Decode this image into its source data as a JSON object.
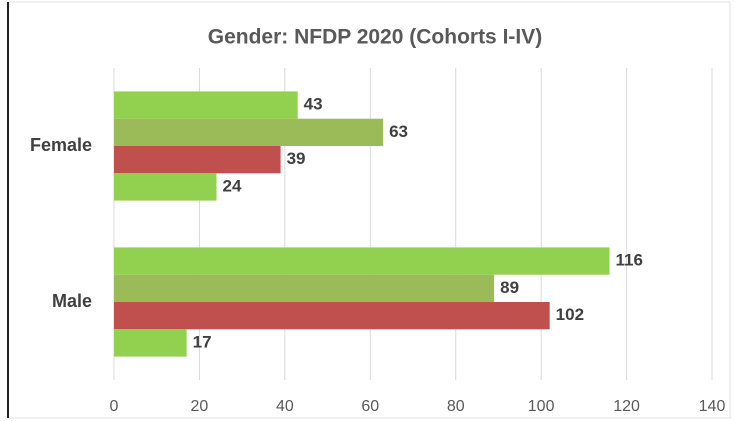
{
  "chart_data": {
    "type": "bar",
    "orientation": "horizontal",
    "title": "Gender: NFDP 2020 (Cohorts I-IV)",
    "categories": [
      "Female",
      "Male"
    ],
    "series": [
      {
        "color": "#92d050",
        "values": [
          43,
          116
        ]
      },
      {
        "color": "#9bbb59",
        "values": [
          63,
          89
        ]
      },
      {
        "color": "#c0504d",
        "values": [
          39,
          102
        ]
      },
      {
        "color": "#92d050",
        "values": [
          24,
          17
        ]
      }
    ],
    "xlim": [
      0,
      140
    ],
    "xticks": [
      0,
      20,
      40,
      60,
      80,
      100,
      120,
      140
    ],
    "grid": true
  }
}
